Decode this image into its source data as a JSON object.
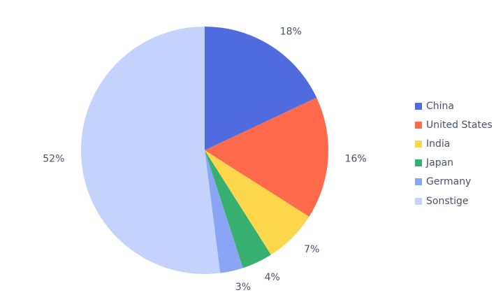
{
  "chart_data": {
    "type": "pie",
    "title": "",
    "categories": [
      "China",
      "United States",
      "India",
      "Japan",
      "Germany",
      "Sonstige"
    ],
    "values": [
      18,
      16,
      7,
      4,
      3,
      52
    ],
    "labels": [
      "18%",
      "16%",
      "7%",
      "4%",
      "3%",
      "52%"
    ],
    "colors": [
      "#4f6bde",
      "#fe6a4b",
      "#fed64b",
      "#37b06f",
      "#8ba5f6",
      "#c4d3fc"
    ],
    "start_angle_deg": 0,
    "direction": "clockwise",
    "legend_position": "right"
  }
}
